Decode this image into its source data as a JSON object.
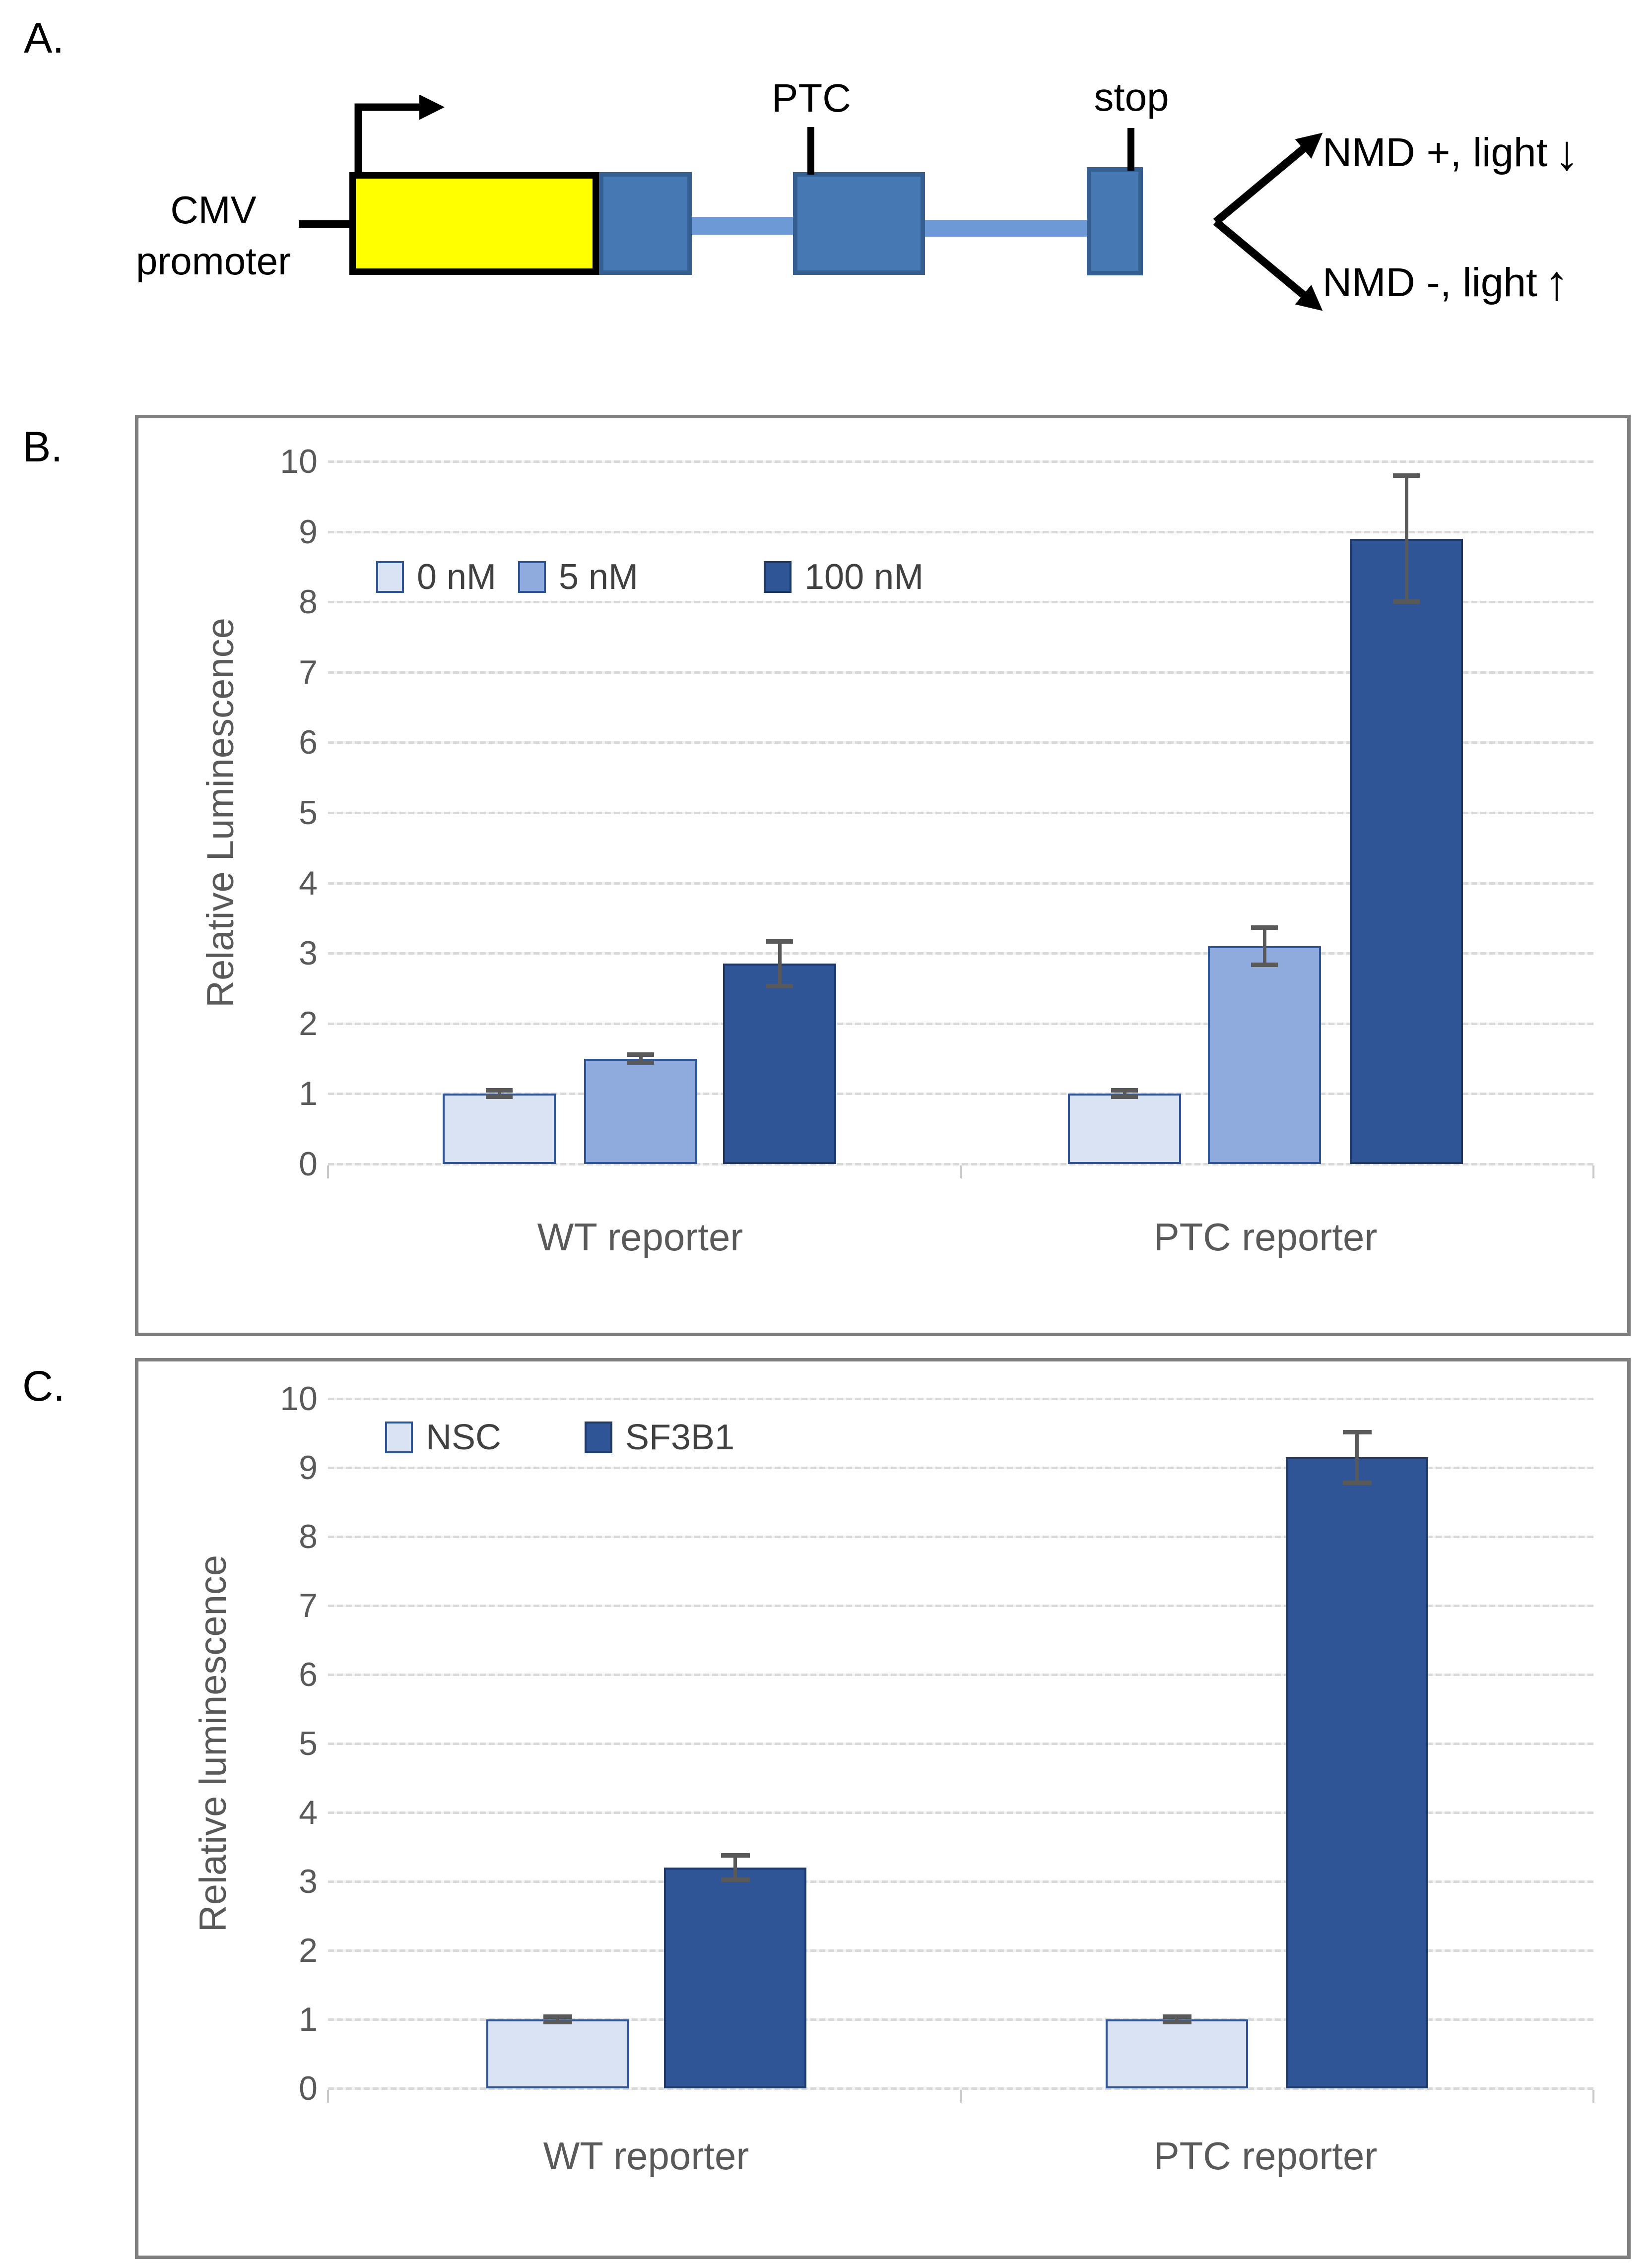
{
  "figure": {
    "panel_a_label": "A.",
    "panel_b_label": "B.",
    "panel_c_label": "C."
  },
  "panel_a": {
    "promoter_label": "CMV\npromoter",
    "ptc_label": "PTC",
    "stop_label": "stop",
    "outcomes": [
      {
        "text": "NMD +, light",
        "arrow": "↓"
      },
      {
        "text": "NMD -, light",
        "arrow": "↑"
      }
    ],
    "colors": {
      "reporter_gene_fill": "#ffff00",
      "exon_fill": "#4678b4",
      "exon_border": "#355f91",
      "intron_fill": "#6d9ad6",
      "outline": "#000000"
    }
  },
  "chart_data": [
    {
      "id": "panel-b",
      "type": "bar",
      "title": "",
      "xlabel": "",
      "ylabel": "Relative Luminescence",
      "categories": [
        "WT reporter",
        "PTC reporter"
      ],
      "series": [
        {
          "name": "0 nM",
          "color": "#dae3f3",
          "border": "#2f5597",
          "values": [
            1.0,
            1.0
          ],
          "errors": [
            0.05,
            0.05
          ]
        },
        {
          "name": "5 nM",
          "color": "#8faadc",
          "border": "#2f5597",
          "values": [
            1.5,
            3.1
          ],
          "errors": [
            0.06,
            0.27
          ]
        },
        {
          "name": "100 nM",
          "color": "#2f5597",
          "border": "#1f3864",
          "values": [
            2.85,
            8.9
          ],
          "errors": [
            0.32,
            0.9
          ]
        }
      ],
      "ylim": [
        0,
        10
      ],
      "yticks": [
        0,
        1,
        2,
        3,
        4,
        5,
        6,
        7,
        8,
        9,
        10
      ],
      "grid": true,
      "legend_position": "inside-top-left"
    },
    {
      "id": "panel-c",
      "type": "bar",
      "title": "",
      "xlabel": "",
      "ylabel": "Relative luminescence",
      "categories": [
        "WT reporter",
        "PTC reporter"
      ],
      "series": [
        {
          "name": "NSC",
          "color": "#dae3f3",
          "border": "#2f5597",
          "values": [
            1.0,
            1.0
          ],
          "errors": [
            0.04,
            0.04
          ]
        },
        {
          "name": "SF3B1",
          "color": "#2f5597",
          "border": "#1f3864",
          "values": [
            3.2,
            9.15
          ],
          "errors": [
            0.18,
            0.37
          ]
        }
      ],
      "ylim": [
        0,
        10
      ],
      "yticks": [
        0,
        1,
        2,
        3,
        4,
        5,
        6,
        7,
        8,
        9,
        10
      ],
      "grid": true,
      "legend_position": "inside-top-left"
    }
  ],
  "style_colors": {
    "error_bar": "#595959",
    "gridline": "#d9d9d9",
    "panel_border": "#7f7f7f",
    "axis_text": "#595959"
  }
}
